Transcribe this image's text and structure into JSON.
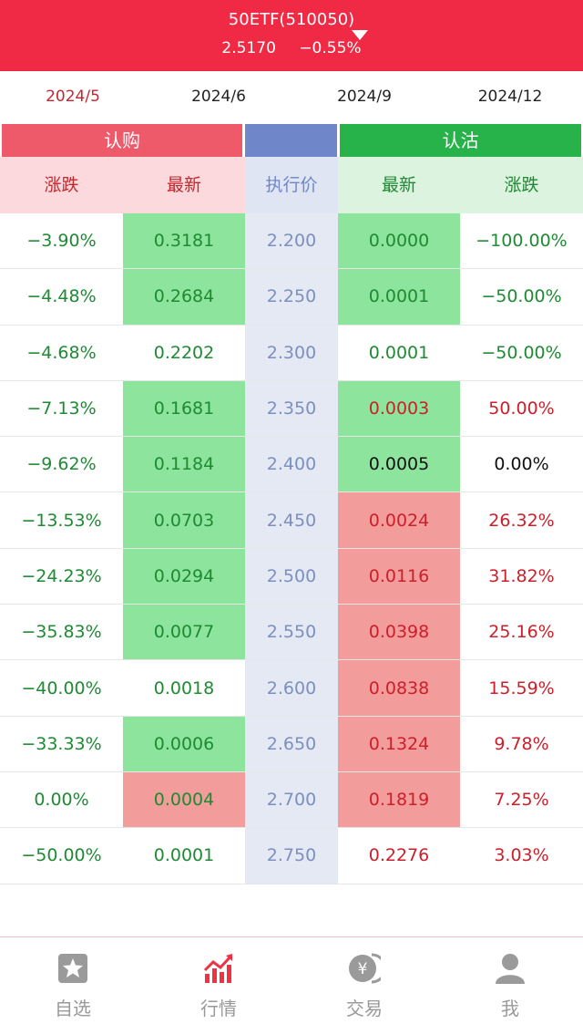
{
  "header": {
    "title": "50ETF(510050)",
    "price": "2.5170",
    "change": "−0.55%"
  },
  "tabs": [
    {
      "label": "2024/5",
      "active": true
    },
    {
      "label": "2024/6",
      "active": false
    },
    {
      "label": "2024/9",
      "active": false
    },
    {
      "label": "2024/12",
      "active": false
    }
  ],
  "groups": {
    "call": "认购",
    "put": "认沽"
  },
  "columns": {
    "call_change": "涨跌",
    "call_latest": "最新",
    "strike": "执行价",
    "put_latest": "最新",
    "put_change": "涨跌"
  },
  "rows": [
    {
      "call_change": "−3.90%",
      "call_latest": "0.3181",
      "call_bg": "green",
      "strike": "2.200",
      "put_latest": "0.0000",
      "put_color": "green",
      "put_bg": "green",
      "put_change": "−100.00%",
      "put_change_color": "green"
    },
    {
      "call_change": "−4.48%",
      "call_latest": "0.2684",
      "call_bg": "green",
      "strike": "2.250",
      "put_latest": "0.0001",
      "put_color": "green",
      "put_bg": "green",
      "put_change": "−50.00%",
      "put_change_color": "green"
    },
    {
      "call_change": "−4.68%",
      "call_latest": "0.2202",
      "call_bg": "none",
      "strike": "2.300",
      "put_latest": "0.0001",
      "put_color": "green",
      "put_bg": "none",
      "put_change": "−50.00%",
      "put_change_color": "green"
    },
    {
      "call_change": "−7.13%",
      "call_latest": "0.1681",
      "call_bg": "green",
      "strike": "2.350",
      "put_latest": "0.0003",
      "put_color": "red",
      "put_bg": "green",
      "put_change": "50.00%",
      "put_change_color": "red"
    },
    {
      "call_change": "−9.62%",
      "call_latest": "0.1184",
      "call_bg": "green",
      "strike": "2.400",
      "put_latest": "0.0005",
      "put_color": "black",
      "put_bg": "green",
      "put_change": "0.00%",
      "put_change_color": "black"
    },
    {
      "call_change": "−13.53%",
      "call_latest": "0.0703",
      "call_bg": "green",
      "strike": "2.450",
      "put_latest": "0.0024",
      "put_color": "red",
      "put_bg": "red",
      "put_change": "26.32%",
      "put_change_color": "red"
    },
    {
      "call_change": "−24.23%",
      "call_latest": "0.0294",
      "call_bg": "green",
      "strike": "2.500",
      "put_latest": "0.0116",
      "put_color": "red",
      "put_bg": "red",
      "put_change": "31.82%",
      "put_change_color": "red"
    },
    {
      "call_change": "−35.83%",
      "call_latest": "0.0077",
      "call_bg": "green",
      "strike": "2.550",
      "put_latest": "0.0398",
      "put_color": "red",
      "put_bg": "red",
      "put_change": "25.16%",
      "put_change_color": "red"
    },
    {
      "call_change": "−40.00%",
      "call_latest": "0.0018",
      "call_bg": "none",
      "strike": "2.600",
      "put_latest": "0.0838",
      "put_color": "red",
      "put_bg": "red",
      "put_change": "15.59%",
      "put_change_color": "red"
    },
    {
      "call_change": "−33.33%",
      "call_latest": "0.0006",
      "call_bg": "green",
      "strike": "2.650",
      "put_latest": "0.1324",
      "put_color": "red",
      "put_bg": "red",
      "put_change": "9.78%",
      "put_change_color": "red"
    },
    {
      "call_change": "0.00%",
      "call_latest": "0.0004",
      "call_bg": "red",
      "strike": "2.700",
      "put_latest": "0.1819",
      "put_color": "red",
      "put_bg": "red",
      "put_change": "7.25%",
      "put_change_color": "red"
    },
    {
      "call_change": "−50.00%",
      "call_latest": "0.0001",
      "call_bg": "none",
      "strike": "2.750",
      "put_latest": "0.2276",
      "put_color": "red",
      "put_bg": "none",
      "put_change": "3.03%",
      "put_change_color": "red"
    }
  ],
  "nav": [
    {
      "label": "自选",
      "icon": "star-icon",
      "active": false
    },
    {
      "label": "行情",
      "icon": "chart-icon",
      "active": true
    },
    {
      "label": "交易",
      "icon": "yen-coin-icon",
      "active": false
    },
    {
      "label": "我",
      "icon": "user-icon",
      "active": false
    }
  ],
  "colors": {
    "brand": "#f02a45",
    "call": "#ee5a6a",
    "strike": "#6f86c8",
    "put": "#27b24a"
  }
}
